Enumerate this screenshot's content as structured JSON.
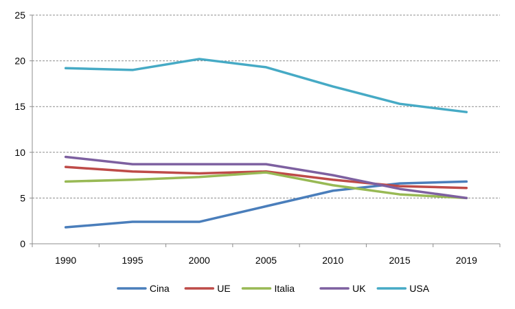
{
  "chart_data": {
    "type": "line",
    "title": "",
    "xlabel": "",
    "ylabel": "",
    "categories": [
      "1990",
      "1995",
      "2000",
      "2005",
      "2010",
      "2015",
      "2019"
    ],
    "ylim": [
      0,
      25
    ],
    "yticks": [
      "0",
      "5",
      "10",
      "15",
      "20",
      "25"
    ],
    "grid": "horizontal dashed",
    "legend_position": "bottom",
    "series": [
      {
        "name": "Cina",
        "color": "#4a7ebb",
        "values": [
          1.8,
          2.4,
          2.4,
          4.1,
          5.8,
          6.6,
          6.8
        ]
      },
      {
        "name": "UE",
        "color": "#be4b48",
        "values": [
          8.4,
          7.9,
          7.7,
          7.9,
          7.0,
          6.3,
          6.1
        ]
      },
      {
        "name": "Italia",
        "color": "#98b954",
        "values": [
          6.8,
          7.0,
          7.3,
          7.8,
          6.4,
          5.4,
          5.0
        ]
      },
      {
        "name": "UK",
        "color": "#7d60a0",
        "values": [
          9.5,
          8.7,
          8.7,
          8.7,
          7.5,
          6.0,
          5.0
        ]
      },
      {
        "name": "USA",
        "color": "#46aac5",
        "values": [
          19.2,
          19.0,
          20.2,
          19.3,
          17.2,
          15.3,
          14.4
        ]
      }
    ]
  }
}
